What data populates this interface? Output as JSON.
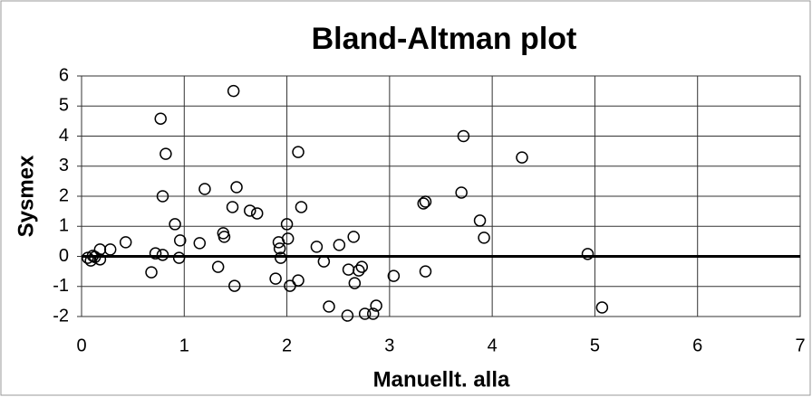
{
  "chart_data": {
    "type": "scatter",
    "title": "Bland-Altman plot",
    "xlabel": "Manuellt. alla",
    "ylabel": "Sysmex",
    "x": [
      1.48,
      0.77,
      0.82,
      0.79,
      0.91,
      0.96,
      0.95,
      1.15,
      1.2,
      1.51,
      1.47,
      1.64,
      1.71,
      1.38,
      1.39,
      1.33,
      1.49,
      0.72,
      0.79,
      0.68,
      0.43,
      0.28,
      0.18,
      0.06,
      0.09,
      0.13,
      0.18,
      0.11,
      2.11,
      2.14,
      2.0,
      2.01,
      1.92,
      1.93,
      1.94,
      1.89,
      2.03,
      2.11,
      2.29,
      2.36,
      2.51,
      2.65,
      2.6,
      2.7,
      2.73,
      2.66,
      2.41,
      2.59,
      2.76,
      2.84,
      2.87,
      3.04,
      3.33,
      3.35,
      3.35,
      3.72,
      3.7,
      3.88,
      3.92,
      4.29,
      4.93,
      5.07
    ],
    "y": [
      5.5,
      4.58,
      3.41,
      2.0,
      1.07,
      0.53,
      -0.05,
      0.44,
      2.24,
      2.3,
      1.64,
      1.52,
      1.43,
      0.77,
      0.65,
      -0.35,
      -0.98,
      0.1,
      0.05,
      -0.53,
      0.47,
      0.23,
      0.23,
      -0.05,
      -0.14,
      -0.02,
      -0.1,
      0.02,
      3.47,
      1.64,
      1.07,
      0.59,
      0.47,
      0.26,
      -0.05,
      -0.74,
      -0.98,
      -0.8,
      0.32,
      -0.17,
      0.38,
      0.65,
      -0.44,
      -0.47,
      -0.35,
      -0.89,
      -1.67,
      -1.97,
      -1.91,
      -1.91,
      -1.64,
      -0.65,
      1.76,
      1.82,
      -0.5,
      4.0,
      2.12,
      1.19,
      0.62,
      3.29,
      0.08,
      -1.7
    ],
    "color": "#000000",
    "xlim": [
      0,
      7
    ],
    "ylim": [
      -2,
      6
    ],
    "xticks": [
      0,
      1,
      2,
      3,
      4,
      5,
      6,
      7
    ],
    "yticks": [
      -2,
      -1,
      0,
      1,
      2,
      3,
      4,
      5,
      6
    ],
    "grid": true
  }
}
